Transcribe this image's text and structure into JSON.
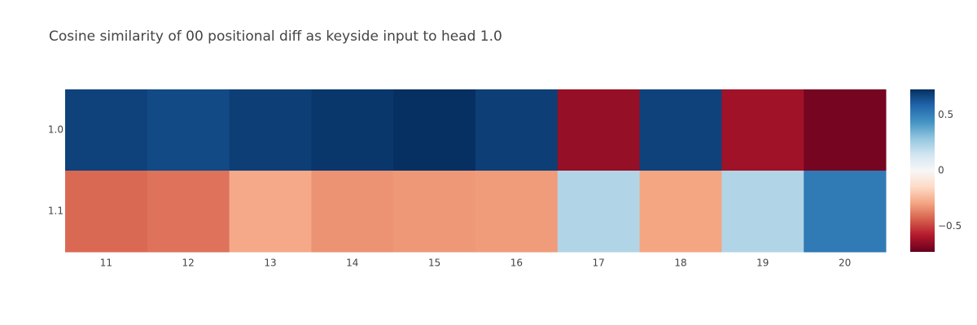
{
  "chart_data": {
    "type": "heatmap",
    "title": "Cosine similarity of 00 positional diff as keyside input to head 1.0",
    "x_categories": [
      "11",
      "12",
      "13",
      "14",
      "15",
      "16",
      "17",
      "18",
      "19",
      "20"
    ],
    "y_categories": [
      "1.0",
      "1.1"
    ],
    "z": [
      [
        0.68,
        0.66,
        0.69,
        0.71,
        0.73,
        0.69,
        -0.64,
        0.68,
        -0.62,
        -0.7
      ],
      [
        -0.42,
        -0.4,
        -0.28,
        -0.33,
        -0.32,
        -0.31,
        0.22,
        -0.29,
        0.22,
        0.52
      ]
    ],
    "colorscale": "RdBu",
    "zmin": -0.73,
    "zmax": 0.73,
    "colorbar": {
      "tick_values": [
        0.5,
        0,
        -0.5
      ],
      "tick_labels": [
        "0.5",
        "0",
        "−0.5"
      ]
    }
  }
}
